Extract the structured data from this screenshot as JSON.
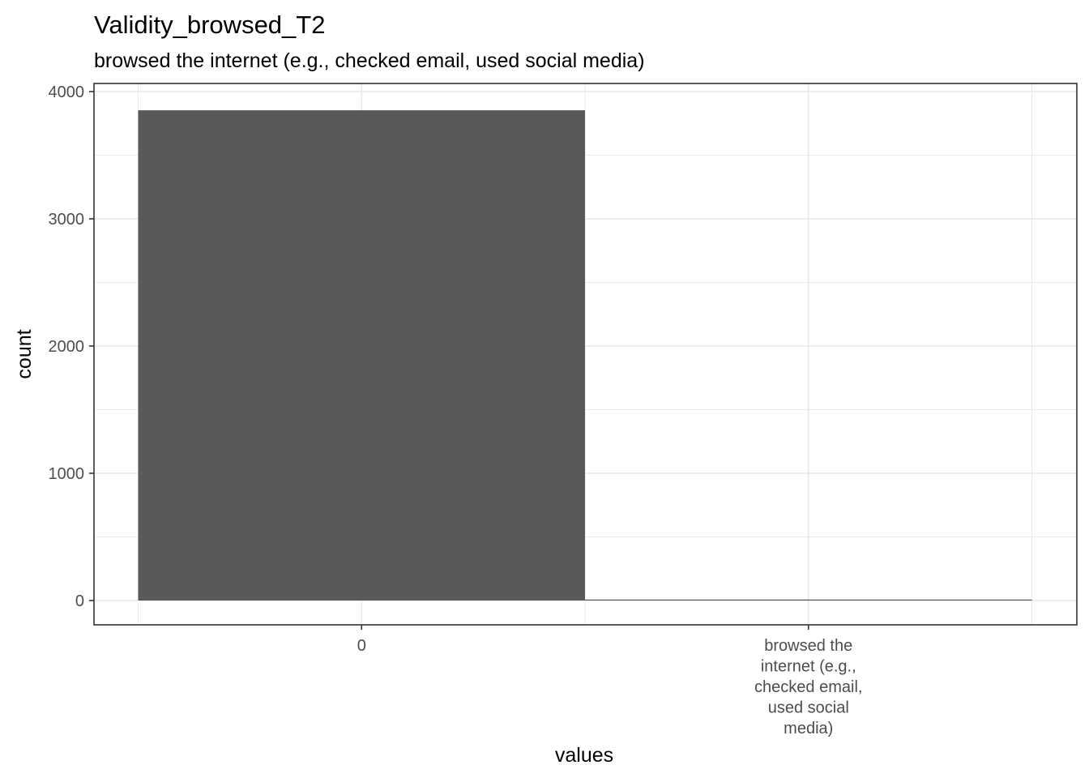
{
  "chart_data": {
    "type": "bar",
    "title": "Validity_browsed_T2",
    "subtitle": "browsed the internet (e.g., checked email, used social media)",
    "xlabel": "values",
    "ylabel": "count",
    "categories": [
      "0",
      "browsed the internet (e.g., checked email, used social media)"
    ],
    "category_label_lines": [
      [
        "0"
      ],
      [
        "browsed the",
        "internet (e.g.,",
        "checked email,",
        "used social",
        "media)"
      ]
    ],
    "values": [
      3853,
      6
    ],
    "ylim": [
      0,
      4000
    ],
    "yticks": [
      0,
      1000,
      2000,
      3000,
      4000
    ],
    "ytick_labels": [
      "0",
      "1000",
      "2000",
      "3000",
      "4000"
    ],
    "grid": true,
    "bar_color": "#595959",
    "grid_color": "#ebebeb",
    "panel_border_color": "#333333"
  }
}
